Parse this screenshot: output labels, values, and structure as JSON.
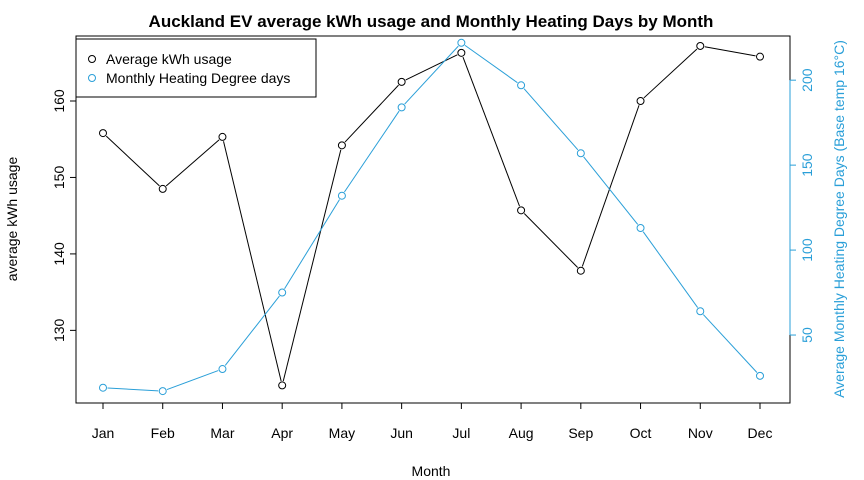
{
  "chart_data": {
    "type": "line",
    "title": "Auckland EV average kWh usage and Monthly Heating Days by Month",
    "xlabel": "Month",
    "ylabel": "average kWh usage",
    "y2label": "Average Monthly Heating Degree Days (Base temp 16°C)",
    "categories": [
      "Jan",
      "Feb",
      "Mar",
      "Apr",
      "May",
      "Jun",
      "Jul",
      "Aug",
      "Sep",
      "Oct",
      "Nov",
      "Dec"
    ],
    "ylim": [
      120.5,
      168.5
    ],
    "y2lim": [
      10,
      226
    ],
    "y_ticks": [
      130,
      140,
      150,
      160
    ],
    "y2_ticks": [
      50,
      100,
      150,
      200
    ],
    "grid": false,
    "legend_position": "top-left",
    "series": [
      {
        "name": "Average kWh usage",
        "axis": "left",
        "color": "#000000",
        "values": [
          155.8,
          148.5,
          155.3,
          122.8,
          154.2,
          162.5,
          166.3,
          145.7,
          137.8,
          160.0,
          167.2,
          165.8
        ]
      },
      {
        "name": "Monthly Heating Degree days",
        "axis": "right",
        "color": "#2a9fd8",
        "values": [
          19,
          17,
          30,
          75,
          132,
          184,
          222,
          197,
          157,
          113,
          64,
          26
        ]
      }
    ]
  }
}
